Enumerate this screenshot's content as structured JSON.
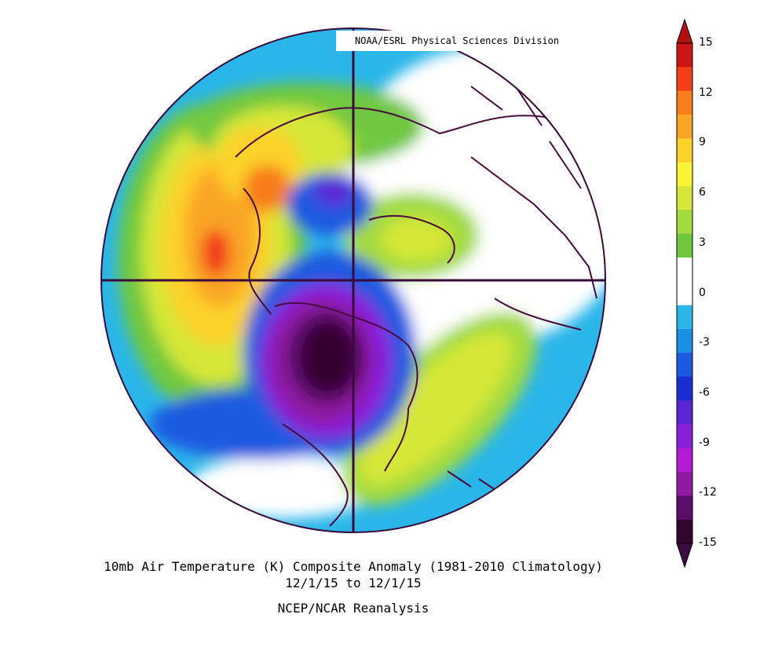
{
  "header": {
    "credit": "NOAA/ESRL Physical Sciences Division"
  },
  "caption": {
    "title": "10mb Air Temperature (K) Composite Anomaly (1981-2010 Climatology)",
    "dates": "12/1/15   to 12/1/15",
    "source": "NCEP/NCAR Reanalysis"
  },
  "colorbar": {
    "labels": [
      "15",
      "12",
      "9",
      "6",
      "3",
      "0",
      "-3",
      "-6",
      "-9",
      "-12",
      "-15"
    ],
    "colors": [
      "#cc1616",
      "#f33e1c",
      "#f87d1f",
      "#f9a526",
      "#fbd12b",
      "#f9f436",
      "#d5e739",
      "#a3da3f",
      "#71c83f",
      "#ffffff",
      "#ffffff",
      "#2ab6e9",
      "#1b8fe3",
      "#1e5ae0",
      "#1b2ed3",
      "#5b26d6",
      "#8a1fd8",
      "#b31cd4",
      "#8e1ba0",
      "#5b0e6a",
      "#34052f"
    ],
    "ends": {
      "top": "#b30f0f",
      "bottom": "#3a0a40"
    }
  },
  "map": {
    "projection": "north-polar-stereographic",
    "anomaly_field": "10mb air temperature anomaly (K)"
  }
}
